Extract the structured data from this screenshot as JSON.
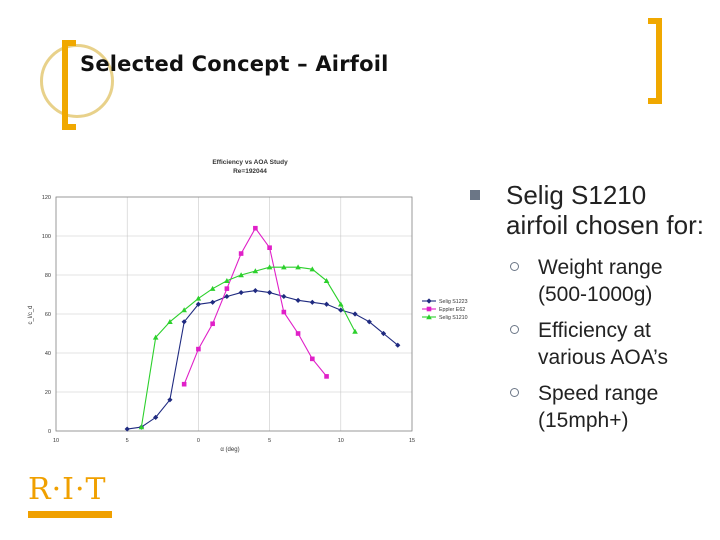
{
  "slide": {
    "title": "Selected Concept – Airfoil"
  },
  "bullets": {
    "main": "Selig S1210 airfoil chosen for:",
    "sub": [
      "Weight range (500-1000g)",
      "Efficiency at various AOA’s",
      "Speed range (15mph+)"
    ]
  },
  "logo": {
    "text": "R·I·T"
  },
  "colors": {
    "accent": "#f0a800",
    "bullet": "#6b7686"
  },
  "chart_data": {
    "type": "line",
    "title": "Efficiency vs AOA Study",
    "subtitle": "Re=192044",
    "xlabel": "α (deg)",
    "ylabel": "c_l/c_d",
    "xlim": [
      -10,
      15
    ],
    "ylim": [
      0,
      120
    ],
    "x_ticks": [
      "10",
      "5",
      "0",
      "5",
      "10",
      "15"
    ],
    "y_ticks": [
      "0",
      "20",
      "40",
      "60",
      "80",
      "100",
      "120"
    ],
    "grid": true,
    "legend_position": "right",
    "series": [
      {
        "name": "Selig S1223",
        "color": "#1f2a80",
        "marker": "diamond",
        "x": [
          -5,
          -4,
          -3,
          -2,
          -1,
          0,
          1,
          2,
          3,
          4,
          5,
          6,
          7,
          8,
          9,
          10,
          11,
          12,
          13,
          14
        ],
        "y": [
          1,
          2,
          7,
          16,
          56,
          65,
          66,
          69,
          71,
          72,
          71,
          69,
          67,
          66,
          65,
          62,
          60,
          56,
          50,
          44
        ]
      },
      {
        "name": "Eppler E62",
        "color": "#e020c8",
        "marker": "square",
        "x": [
          -1,
          0,
          1,
          2,
          3,
          4,
          5,
          6,
          7,
          8,
          9
        ],
        "y": [
          24,
          42,
          55,
          73,
          91,
          104,
          94,
          61,
          50,
          37,
          28
        ]
      },
      {
        "name": "Selig S1210",
        "color": "#2cd02c",
        "marker": "triangle",
        "x": [
          -4,
          -3,
          -2,
          -1,
          0,
          1,
          2,
          3,
          4,
          5,
          6,
          7,
          8,
          9,
          10,
          11
        ],
        "y": [
          2,
          48,
          56,
          62,
          68,
          73,
          77,
          80,
          82,
          84,
          84,
          84,
          83,
          77,
          65,
          51
        ]
      }
    ]
  }
}
